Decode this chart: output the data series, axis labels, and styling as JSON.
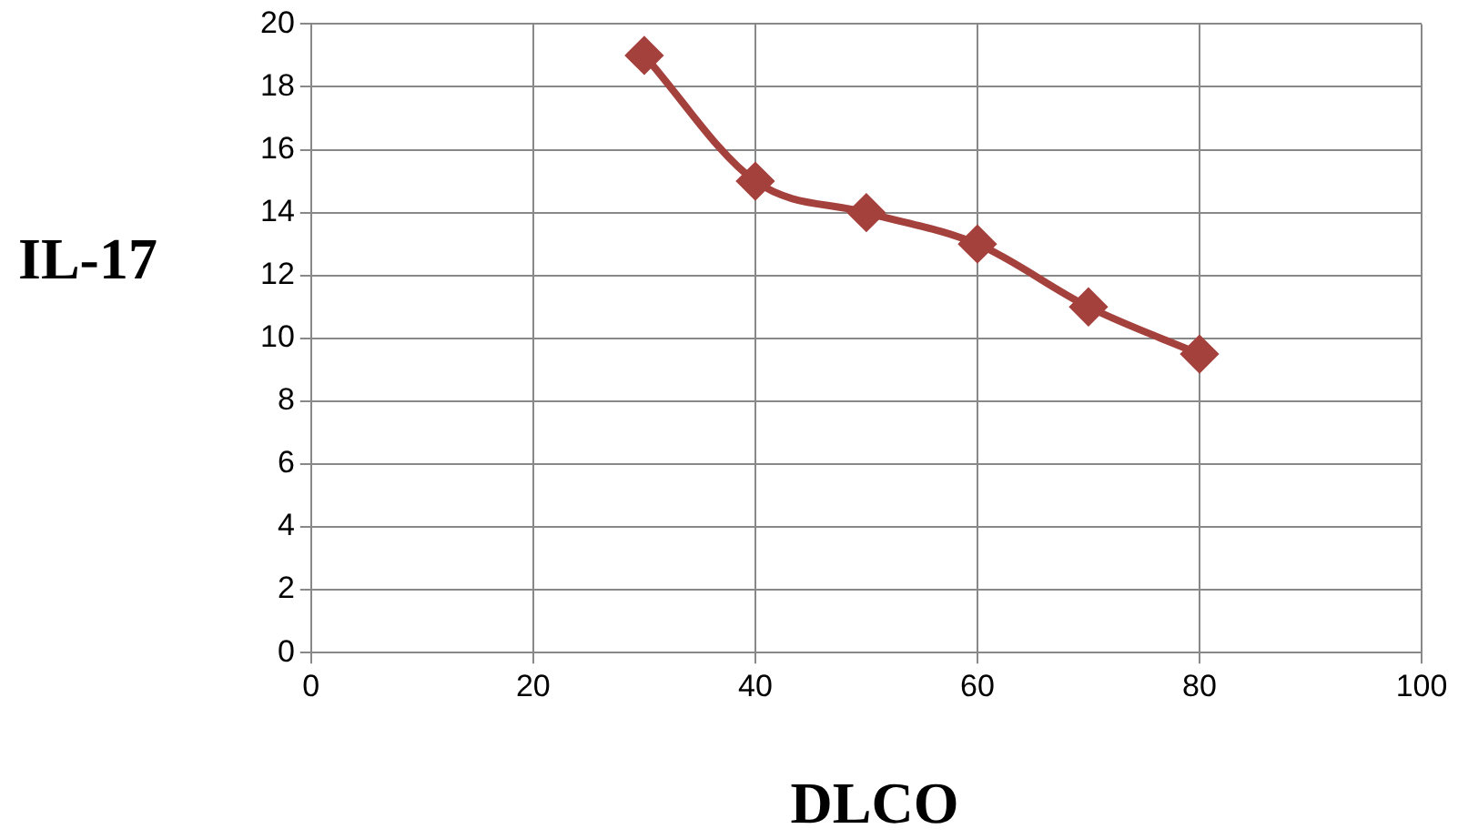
{
  "chart_data": {
    "type": "line",
    "xlabel": "DLCO",
    "ylabel": "IL-17",
    "x": [
      30,
      40,
      50,
      60,
      70,
      80
    ],
    "series": [
      {
        "color": "#a5413d",
        "values": [
          19,
          15,
          14,
          13,
          11,
          9.5
        ]
      }
    ],
    "xlim": [
      0,
      100
    ],
    "xticks": [
      0,
      20,
      40,
      60,
      80,
      100
    ],
    "ylim": [
      0,
      20
    ],
    "yticks": [
      0,
      2,
      4,
      6,
      8,
      10,
      12,
      14,
      16,
      18,
      20
    ],
    "grid": true,
    "legend": false,
    "marker": "diamond",
    "line_style": "solid"
  }
}
